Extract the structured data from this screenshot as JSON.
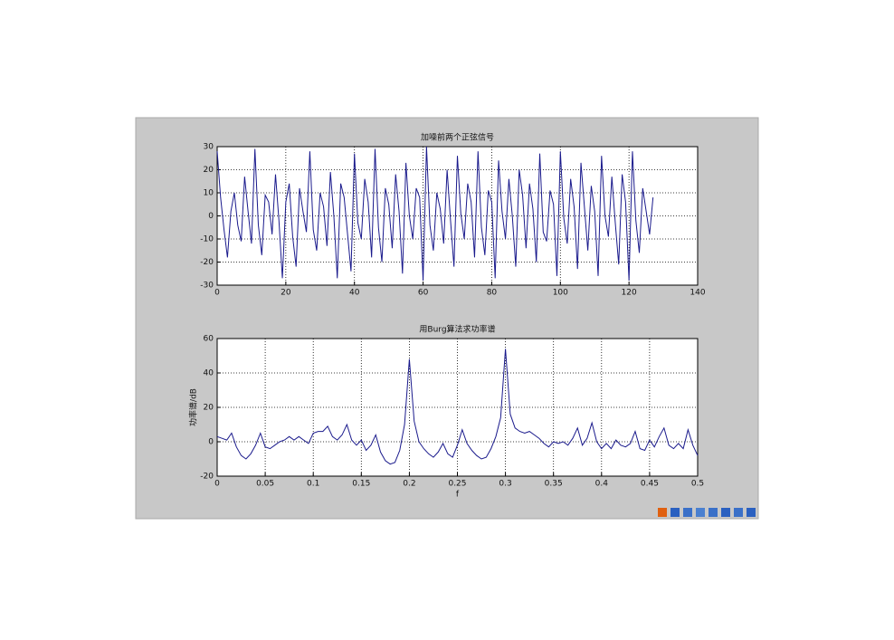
{
  "chart_data": [
    {
      "type": "line",
      "title": "加噪前两个正弦信号",
      "x": [
        0,
        1,
        2,
        3,
        4,
        5,
        6,
        7,
        8,
        9,
        10,
        11,
        12,
        13,
        14,
        15,
        16,
        17,
        18,
        19,
        20,
        21,
        22,
        23,
        24,
        25,
        26,
        27,
        28,
        29,
        30,
        31,
        32,
        33,
        34,
        35,
        36,
        37,
        38,
        39,
        40,
        41,
        42,
        43,
        44,
        45,
        46,
        47,
        48,
        49,
        50,
        51,
        52,
        53,
        54,
        55,
        56,
        57,
        58,
        59,
        60,
        61,
        62,
        63,
        64,
        65,
        66,
        67,
        68,
        69,
        70,
        71,
        72,
        73,
        74,
        75,
        76,
        77,
        78,
        79,
        80,
        81,
        82,
        83,
        84,
        85,
        86,
        87,
        88,
        89,
        90,
        91,
        92,
        93,
        94,
        95,
        96,
        97,
        98,
        99,
        100,
        101,
        102,
        103,
        104,
        105,
        106,
        107,
        108,
        109,
        110,
        111,
        112,
        113,
        114,
        115,
        116,
        117,
        118,
        119,
        120,
        121,
        122,
        123,
        124,
        125,
        126,
        127
      ],
      "series": [
        {
          "color": "#1a1a8c",
          "values": [
            28,
            8,
            -6,
            -18,
            2,
            10,
            -4,
            -11,
            17,
            2,
            -12,
            29,
            -4,
            -17,
            9,
            6,
            -8,
            18,
            -2,
            -27,
            6,
            14,
            -9,
            -22,
            12,
            2,
            -7,
            28,
            -6,
            -15,
            10,
            4,
            -13,
            19,
            0,
            -27,
            14,
            8,
            -8,
            -24,
            27,
            -3,
            -10,
            16,
            6,
            -18,
            29,
            -5,
            -20,
            12,
            5,
            -14,
            18,
            2,
            -25,
            23,
            0,
            -10,
            12,
            8,
            -28,
            30,
            -4,
            -15,
            10,
            3,
            -12,
            20,
            -2,
            -22,
            26,
            1,
            -10,
            14,
            6,
            -18,
            28,
            -5,
            -17,
            11,
            6,
            -27,
            24,
            2,
            -10,
            16,
            0,
            -22,
            20,
            9,
            -14,
            14,
            3,
            -20,
            27,
            -7,
            -11,
            11,
            5,
            -26,
            28,
            -1,
            -12,
            16,
            4,
            -23,
            23,
            4,
            -15,
            13,
            2,
            -26,
            26,
            0,
            -9,
            17,
            -3,
            -21,
            18,
            6,
            -28,
            28,
            -2,
            -16,
            12,
            2,
            -8,
            8
          ]
        }
      ],
      "xlim": [
        0,
        140
      ],
      "xticks": [
        0,
        20,
        40,
        60,
        80,
        100,
        120,
        140
      ],
      "ylim": [
        -30,
        30
      ],
      "yticks": [
        -30,
        -20,
        -10,
        0,
        10,
        20,
        30
      ],
      "grid": true
    },
    {
      "type": "line",
      "title": "用Burg算法求功率谱",
      "x_label": "f",
      "y_label": "功率谱/dB",
      "x": [
        0,
        0.005,
        0.01,
        0.015,
        0.02,
        0.025,
        0.03,
        0.035,
        0.04,
        0.045,
        0.05,
        0.055,
        0.06,
        0.065,
        0.07,
        0.075,
        0.08,
        0.085,
        0.09,
        0.095,
        0.1,
        0.105,
        0.11,
        0.115,
        0.12,
        0.125,
        0.13,
        0.135,
        0.14,
        0.145,
        0.15,
        0.155,
        0.16,
        0.165,
        0.17,
        0.175,
        0.18,
        0.185,
        0.19,
        0.195,
        0.2,
        0.205,
        0.21,
        0.215,
        0.22,
        0.225,
        0.23,
        0.235,
        0.24,
        0.245,
        0.25,
        0.255,
        0.26,
        0.265,
        0.27,
        0.275,
        0.28,
        0.285,
        0.29,
        0.295,
        0.3,
        0.305,
        0.31,
        0.315,
        0.32,
        0.325,
        0.33,
        0.335,
        0.34,
        0.345,
        0.35,
        0.355,
        0.36,
        0.365,
        0.37,
        0.375,
        0.38,
        0.385,
        0.39,
        0.395,
        0.4,
        0.405,
        0.41,
        0.415,
        0.42,
        0.425,
        0.43,
        0.435,
        0.44,
        0.445,
        0.45,
        0.455,
        0.46,
        0.465,
        0.47,
        0.475,
        0.48,
        0.485,
        0.49,
        0.495,
        0.5
      ],
      "series": [
        {
          "color": "#1a1a8c",
          "values": [
            3,
            2,
            1,
            5,
            -3,
            -8,
            -10,
            -7,
            -2,
            5,
            -3,
            -4,
            -2,
            0,
            1,
            3,
            1,
            3,
            1,
            -1,
            5,
            6,
            6,
            9,
            3,
            1,
            4,
            10,
            1,
            -2,
            1,
            -5,
            -2,
            4,
            -6,
            -11,
            -13,
            -12,
            -5,
            10,
            48,
            12,
            0,
            -4,
            -7,
            -9,
            -6,
            -1,
            -7,
            -9,
            -2,
            7,
            -1,
            -5,
            -8,
            -10,
            -9,
            -4,
            3,
            14,
            54,
            16,
            8,
            6,
            5,
            6,
            4,
            2,
            -1,
            -3,
            0,
            -1,
            0,
            -2,
            2,
            8,
            -2,
            2,
            11,
            0,
            -4,
            -1,
            -4,
            1,
            -2,
            -3,
            -1,
            6,
            -4,
            -5,
            1,
            -3,
            3,
            8,
            -2,
            -4,
            -1,
            -4,
            7,
            -2,
            -8
          ]
        }
      ],
      "xlim": [
        0,
        0.5
      ],
      "xticks": [
        0,
        0.05,
        0.1,
        0.15,
        0.2,
        0.25,
        0.3,
        0.35,
        0.4,
        0.45,
        0.5
      ],
      "ylim": [
        -20,
        60
      ],
      "yticks": [
        -20,
        0,
        20,
        40,
        60
      ],
      "grid": true
    }
  ]
}
